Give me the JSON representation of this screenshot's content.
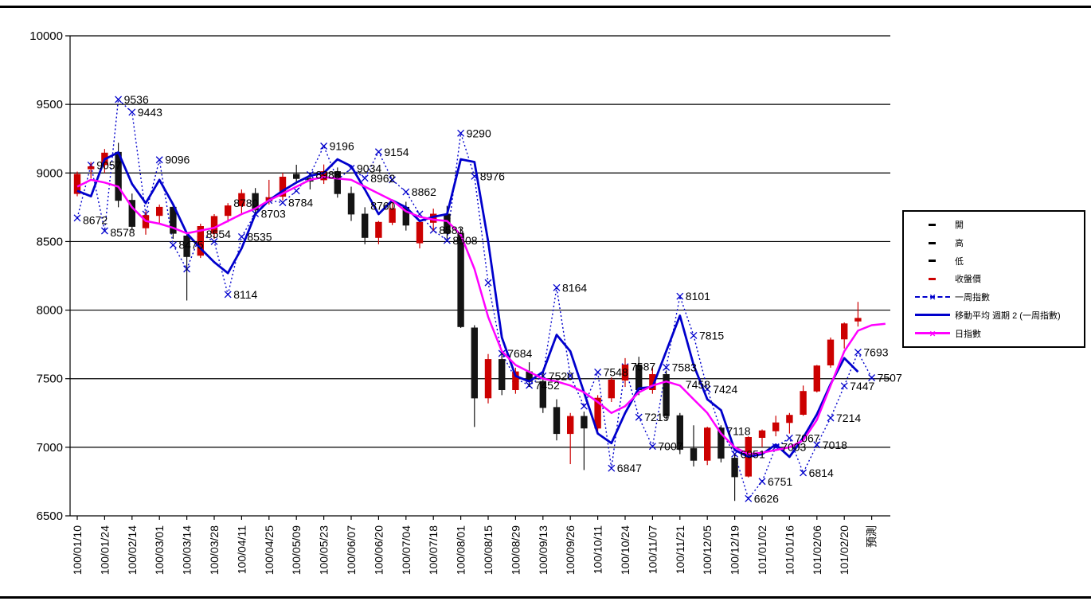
{
  "colors": {
    "up": "#cc0000",
    "down": "#141414",
    "blue": "#0000cc",
    "magenta": "#ff00ff",
    "grid": "#000000"
  },
  "chart_data": {
    "type": "candlestick",
    "title": "",
    "xlabel": "",
    "ylabel": "",
    "ylim": [
      6500,
      10000
    ],
    "yticks": [
      6500,
      7000,
      7500,
      8000,
      8500,
      9000,
      9500,
      10000
    ],
    "label_every": 2,
    "x_labels": [
      "100/01/10",
      "100/01/24",
      "100/02/14",
      "100/03/01",
      "100/03/14",
      "100/03/28",
      "100/04/11",
      "100/04/25",
      "100/05/09",
      "100/05/23",
      "100/06/07",
      "100/06/20",
      "100/07/04",
      "100/07/18",
      "100/08/01",
      "100/08/15",
      "100/08/29",
      "100/09/13",
      "100/09/26",
      "100/10/11",
      "100/10/24",
      "100/11/07",
      "100/11/21",
      "100/12/05",
      "100/12/19",
      "101/01/02",
      "101/01/16",
      "101/02/06",
      "101/02/20",
      "預測"
    ],
    "series": [
      {
        "name": "一周指數",
        "key": "pred",
        "style": "dashed",
        "color": "#0000cc",
        "marker": "x"
      },
      {
        "name": "移動平均 週期 2 (一周指數)",
        "key": "ma",
        "style": "solid",
        "color": "#0000cc",
        "marker": "none"
      },
      {
        "name": "日指數",
        "key": "daily",
        "style": "solid",
        "color": "#ff00ff",
        "marker": "x"
      }
    ],
    "ohlc": [
      [
        8850,
        9010,
        8830,
        8990
      ],
      [
        9030,
        9080,
        8960,
        9045
      ],
      [
        9060,
        9175,
        9000,
        9145
      ],
      [
        9150,
        9220,
        8750,
        8800
      ],
      [
        8800,
        8850,
        8580,
        8610
      ],
      [
        8600,
        8720,
        8550,
        8690
      ],
      [
        8690,
        8770,
        8630,
        8750
      ],
      [
        8750,
        8780,
        8520,
        8560
      ],
      [
        8540,
        8570,
        8070,
        8390
      ],
      [
        8400,
        8630,
        8380,
        8610
      ],
      [
        8560,
        8700,
        8520,
        8683
      ],
      [
        8690,
        8780,
        8640,
        8760
      ],
      [
        8760,
        8880,
        8700,
        8850
      ],
      [
        8850,
        8890,
        8700,
        8730
      ],
      [
        8800,
        8950,
        8770,
        8820
      ],
      [
        8830,
        9000,
        8800,
        8970
      ],
      [
        8990,
        9060,
        8930,
        8960
      ],
      [
        8960,
        9000,
        8880,
        8940
      ],
      [
        8950,
        9062,
        8920,
        9010
      ],
      [
        9010,
        9040,
        8820,
        8850
      ],
      [
        8850,
        8900,
        8650,
        8700
      ],
      [
        8700,
        8750,
        8480,
        8530
      ],
      [
        8530,
        8650,
        8480,
        8640
      ],
      [
        8640,
        8780,
        8620,
        8740
      ],
      [
        8750,
        8790,
        8580,
        8620
      ],
      [
        8490,
        8660,
        8450,
        8640
      ],
      [
        8640,
        8740,
        8580,
        8700
      ],
      [
        8700,
        8760,
        8520,
        8560
      ],
      [
        8560,
        8600,
        7870,
        7880
      ],
      [
        7870,
        7890,
        7148,
        7360
      ],
      [
        7360,
        7680,
        7320,
        7640
      ],
      [
        7640,
        7690,
        7380,
        7420
      ],
      [
        7420,
        7580,
        7390,
        7550
      ],
      [
        7550,
        7620,
        7440,
        7480
      ],
      [
        7480,
        7560,
        7250,
        7290
      ],
      [
        7290,
        7350,
        7050,
        7100
      ],
      [
        7100,
        7250,
        6877,
        7225
      ],
      [
        7225,
        7260,
        6834,
        7140
      ],
      [
        7140,
        7380,
        7120,
        7358
      ],
      [
        7360,
        7510,
        7330,
        7490
      ],
      [
        7490,
        7650,
        7440,
        7600
      ],
      [
        7600,
        7660,
        7380,
        7420
      ],
      [
        7420,
        7580,
        7390,
        7530
      ],
      [
        7530,
        7560,
        7200,
        7230
      ],
      [
        7230,
        7250,
        6950,
        6985
      ],
      [
        6990,
        7160,
        6860,
        6905
      ],
      [
        6905,
        7150,
        6870,
        7140
      ],
      [
        7140,
        7160,
        6890,
        6920
      ],
      [
        6920,
        6950,
        6609,
        6785
      ],
      [
        6790,
        7080,
        6780,
        7072
      ],
      [
        7072,
        7130,
        7000,
        7120
      ],
      [
        7120,
        7230,
        7080,
        7178
      ],
      [
        7180,
        7250,
        7100,
        7233
      ],
      [
        7240,
        7450,
        7230,
        7407
      ],
      [
        7410,
        7600,
        7400,
        7593
      ],
      [
        7600,
        7800,
        7580,
        7782
      ],
      [
        7790,
        7910,
        7720,
        7900
      ],
      [
        7920,
        8060,
        7880,
        7940
      ],
      null,
      null
    ],
    "pred": [
      8672,
      9057,
      8578,
      9536,
      9443,
      8700,
      9096,
      8475,
      8300,
      8554,
      8500,
      8114,
      8535,
      8703,
      8800,
      8784,
      8870,
      8988,
      9196,
      8950,
      9034,
      8962,
      9154,
      8950,
      8862,
      8700,
      8583,
      8508,
      9290,
      8976,
      8200,
      7684,
      7500,
      7452,
      7520,
      8164,
      7520,
      7300,
      7548,
      6847,
      7587,
      7219,
      7007,
      7583,
      8101,
      7815,
      7424,
      7118,
      6951,
      6626,
      6751,
      7003,
      7067,
      6814,
      7018,
      7214,
      7447,
      7693,
      7507,
      null
    ],
    "ma": [
      8870,
      8830,
      9100,
      9150,
      8920,
      8780,
      8950,
      8770,
      8560,
      8450,
      8350,
      8270,
      8450,
      8700,
      8800,
      8870,
      8930,
      8980,
      9000,
      9100,
      9050,
      8880,
      8700,
      8800,
      8750,
      8650,
      8680,
      8700,
      9100,
      9080,
      8500,
      7800,
      7520,
      7480,
      7550,
      7820,
      7700,
      7400,
      7100,
      7030,
      7250,
      7430,
      7440,
      7700,
      7960,
      7600,
      7350,
      7270,
      6980,
      6930,
      6950,
      7020,
      6930,
      7070,
      7240,
      7460,
      7650,
      7550,
      null,
      null
    ],
    "daily": [
      8900,
      8950,
      8930,
      8900,
      8750,
      8650,
      8630,
      8600,
      8560,
      8580,
      8600,
      8650,
      8700,
      8740,
      8800,
      8850,
      8900,
      8950,
      8970,
      8960,
      8950,
      8900,
      8850,
      8800,
      8720,
      8680,
      8660,
      8650,
      8550,
      8300,
      7950,
      7700,
      7600,
      7550,
      7500,
      7480,
      7450,
      7400,
      7330,
      7250,
      7300,
      7400,
      7450,
      7480,
      7450,
      7350,
      7250,
      7100,
      7000,
      6950,
      6960,
      6980,
      7000,
      7050,
      7200,
      7450,
      7700,
      7850,
      7890,
      7900
    ],
    "annotations": [
      {
        "i": 0,
        "v": 8655,
        "text": "8672"
      },
      {
        "i": 1,
        "v": 9057,
        "text": "9057"
      },
      {
        "i": 2,
        "v": 8565,
        "text": "8578"
      },
      {
        "i": 3,
        "v": 9536,
        "text": "9536"
      },
      {
        "i": 4,
        "v": 9443,
        "text": "9443"
      },
      {
        "i": 6,
        "v": 9096,
        "text": "9096"
      },
      {
        "i": 7,
        "v": 8475,
        "text": "8475"
      },
      {
        "i": 9,
        "v": 8554,
        "text": "8554"
      },
      {
        "i": 11,
        "v": 8780,
        "text": "8780"
      },
      {
        "i": 11,
        "v": 8114,
        "text": "8114"
      },
      {
        "i": 12,
        "v": 8535,
        "text": "8535"
      },
      {
        "i": 13,
        "v": 8703,
        "text": "8703"
      },
      {
        "i": 15,
        "v": 8784,
        "text": "8784"
      },
      {
        "i": 17,
        "v": 8988,
        "text": "8988"
      },
      {
        "i": 18,
        "v": 9196,
        "text": "9196"
      },
      {
        "i": 20,
        "v": 9034,
        "text": "9034"
      },
      {
        "i": 21,
        "v": 8962,
        "text": "8962"
      },
      {
        "i": 21,
        "v": 8760,
        "text": "8760"
      },
      {
        "i": 22,
        "v": 9154,
        "text": "9154"
      },
      {
        "i": 24,
        "v": 8862,
        "text": "8862"
      },
      {
        "i": 26,
        "v": 8583,
        "text": "8583"
      },
      {
        "i": 27,
        "v": 8508,
        "text": "8508"
      },
      {
        "i": 28,
        "v": 9290,
        "text": "9290"
      },
      {
        "i": 29,
        "v": 8976,
        "text": "8976"
      },
      {
        "i": 31,
        "v": 7684,
        "text": "7684"
      },
      {
        "i": 33,
        "v": 7452,
        "text": "7452"
      },
      {
        "i": 34,
        "v": 7520,
        "text": "7520"
      },
      {
        "i": 35,
        "v": 8164,
        "text": "8164"
      },
      {
        "i": 38,
        "v": 7548,
        "text": "7548"
      },
      {
        "i": 39,
        "v": 6847,
        "text": "6847"
      },
      {
        "i": 40,
        "v": 7587,
        "text": "7587"
      },
      {
        "i": 41,
        "v": 7219,
        "text": "7219"
      },
      {
        "i": 42,
        "v": 7007,
        "text": "7007"
      },
      {
        "i": 43,
        "v": 7583,
        "text": "7583"
      },
      {
        "i": 44,
        "v": 8101,
        "text": "8101"
      },
      {
        "i": 44,
        "v": 7458,
        "text": "7458"
      },
      {
        "i": 45,
        "v": 7815,
        "text": "7815"
      },
      {
        "i": 46,
        "v": 7424,
        "text": "7424"
      },
      {
        "i": 47,
        "v": 7118,
        "text": "7118"
      },
      {
        "i": 48,
        "v": 6951,
        "text": "6951"
      },
      {
        "i": 49,
        "v": 6626,
        "text": "6626"
      },
      {
        "i": 50,
        "v": 6751,
        "text": "6751"
      },
      {
        "i": 51,
        "v": 7003,
        "text": "7003"
      },
      {
        "i": 52,
        "v": 7067,
        "text": "7067"
      },
      {
        "i": 53,
        "v": 6814,
        "text": "6814"
      },
      {
        "i": 54,
        "v": 7018,
        "text": "7018"
      },
      {
        "i": 55,
        "v": 7214,
        "text": "7214"
      },
      {
        "i": 56,
        "v": 7447,
        "text": "7447"
      },
      {
        "i": 57,
        "v": 7693,
        "text": "7693"
      },
      {
        "i": 58,
        "v": 7507,
        "text": "7507"
      }
    ]
  },
  "legend": {
    "items": [
      {
        "label": "開",
        "type": "tick-black"
      },
      {
        "label": "高",
        "type": "tick-black"
      },
      {
        "label": "低",
        "type": "tick-black"
      },
      {
        "label": "收盤價",
        "type": "tick-red"
      },
      {
        "label": "一周指數",
        "type": "dashed-x-blue"
      },
      {
        "label": "移動平均 週期 2 (一周指數)",
        "type": "solid-blue"
      },
      {
        "label": "日指數",
        "type": "solid-x-magenta"
      }
    ]
  }
}
